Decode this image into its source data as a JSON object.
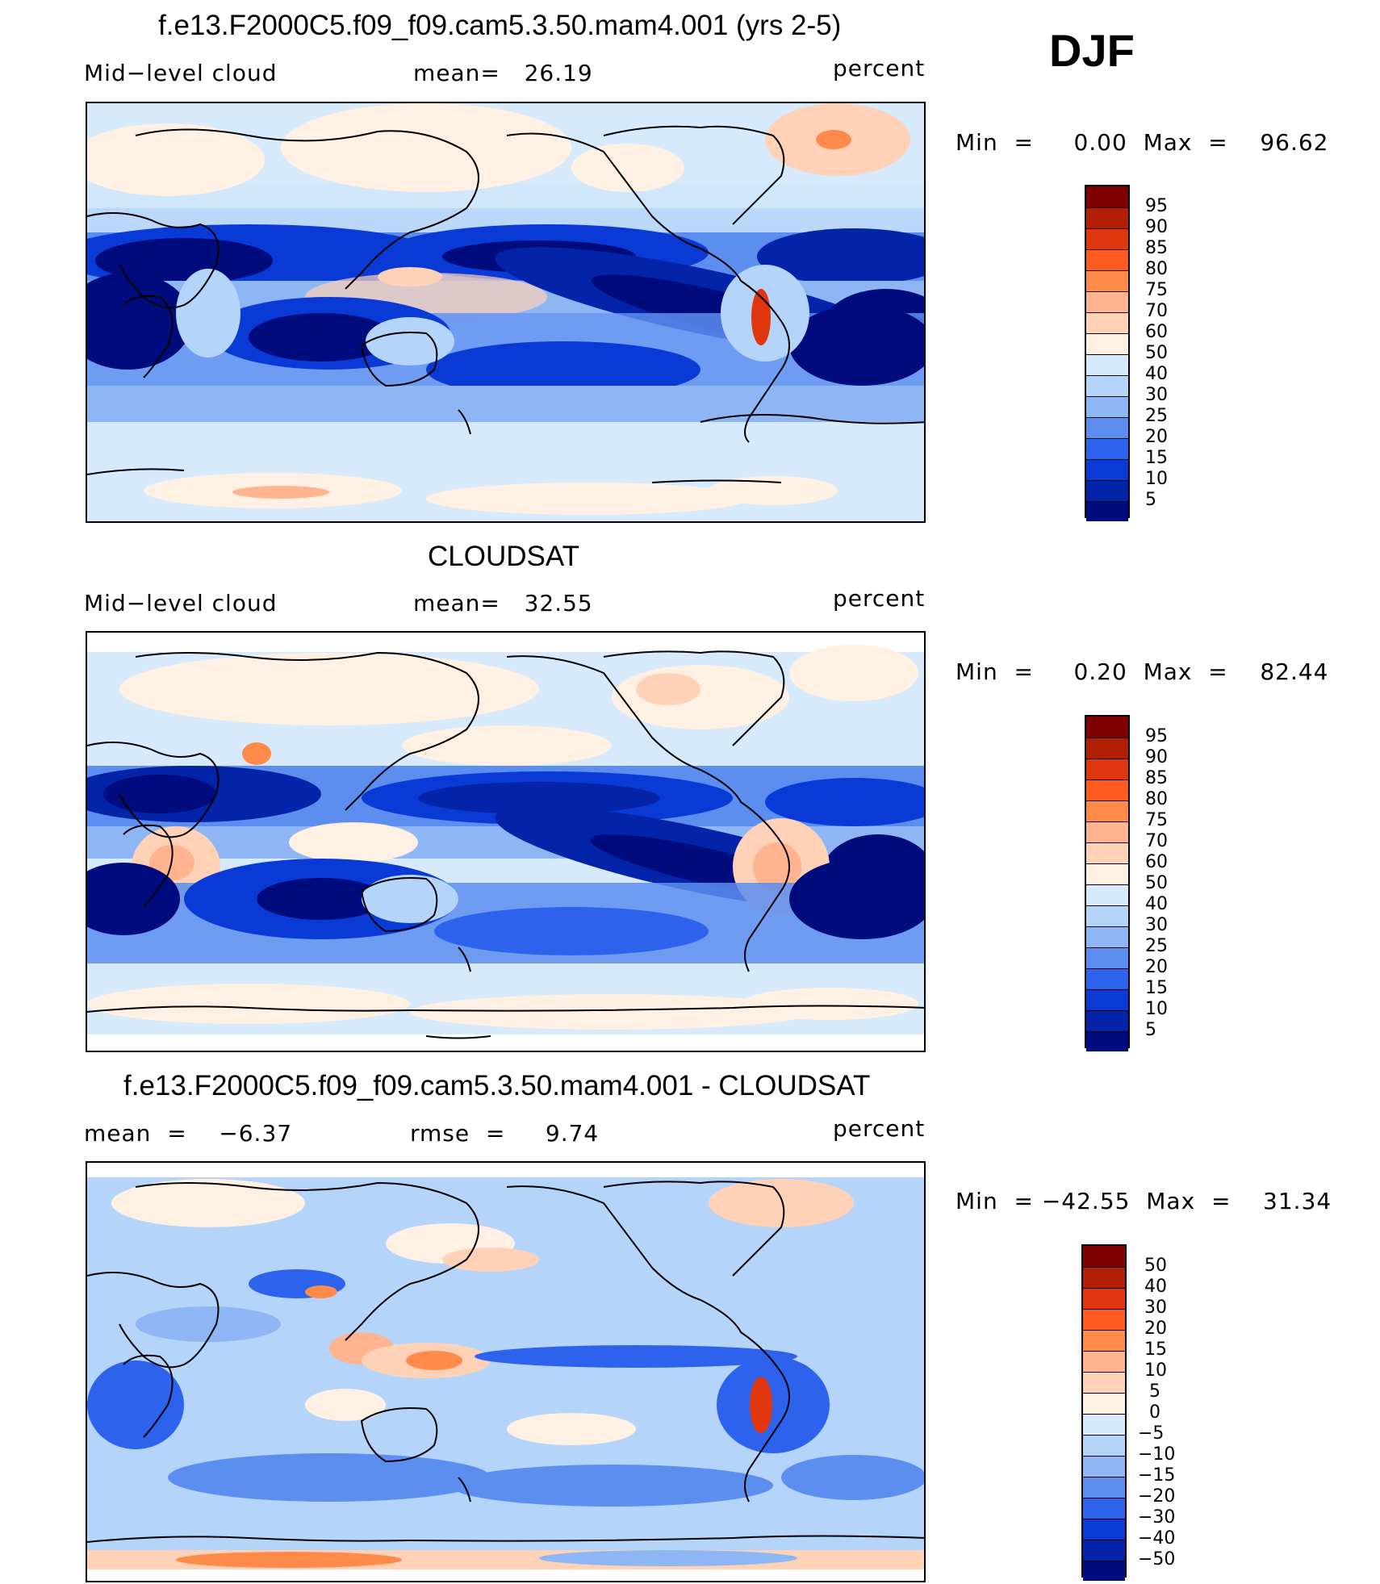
{
  "season": "DJF",
  "panels": [
    {
      "id": "model",
      "title": "f.e13.F2000C5.f09_f09.cam5.3.50.mam4.001 (yrs 2-5)",
      "left_label": "Mid−level cloud",
      "mid_label": "mean=   26.19",
      "units": "percent",
      "minmax": "Min  =     0.00  Max  =    96.62",
      "colorbar_labels": [
        "95",
        "90",
        "85",
        "80",
        "75",
        "70",
        "60",
        "50",
        "40",
        "30",
        "25",
        "20",
        "15",
        "10",
        "5"
      ]
    },
    {
      "id": "obs",
      "title": "CLOUDSAT",
      "left_label": "Mid−level cloud",
      "mid_label": "mean=   32.55",
      "units": "percent",
      "minmax": "Min  =     0.20  Max  =    82.44",
      "colorbar_labels": [
        "95",
        "90",
        "85",
        "80",
        "75",
        "70",
        "60",
        "50",
        "40",
        "30",
        "25",
        "20",
        "15",
        "10",
        "5"
      ]
    },
    {
      "id": "diff",
      "title": "f.e13.F2000C5.f09_f09.cam5.3.50.mam4.001 - CLOUDSAT",
      "left_label": "mean  =    −6.37",
      "mid_label": "rmse  =     9.74",
      "units": "percent",
      "minmax": "Min  = −42.55  Max  =    31.34",
      "colorbar_labels": [
        "50",
        "40",
        "30",
        "20",
        "15",
        "10",
        "5",
        "0",
        "−5",
        "−10",
        "−15",
        "−20",
        "−30",
        "−40",
        "−50"
      ]
    }
  ],
  "colors": {
    "scale": [
      "#7f0000",
      "#b31f05",
      "#e0360e",
      "#ff5a1f",
      "#ff8a4a",
      "#ffb38f",
      "#ffd2b8",
      "#fff0e4",
      "#d6eafc",
      "#b5d4fa",
      "#8fb6f4",
      "#5c8ef0",
      "#2c62ec",
      "#0a3ad6",
      "#0323a8",
      "#000c7d"
    ]
  }
}
